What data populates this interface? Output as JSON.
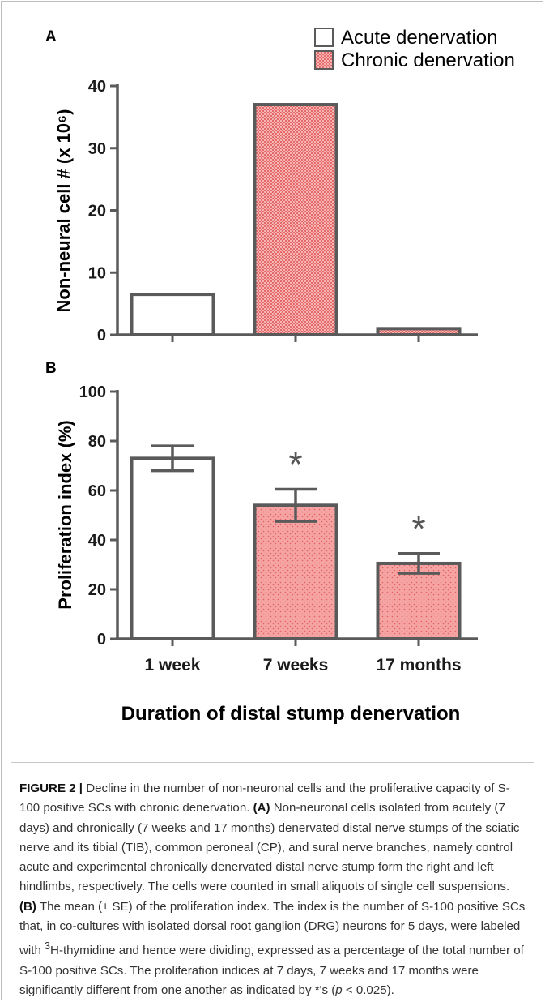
{
  "chart_data": [
    {
      "panel": "A",
      "type": "bar",
      "categories": [
        "1 week",
        "7 weeks",
        "17 months"
      ],
      "values": [
        6.5,
        37,
        1
      ],
      "ylabel": "Non-neural cell # (x 10⁶)",
      "ylim": [
        0,
        40
      ],
      "yticks": [
        "0",
        "10",
        "20",
        "30",
        "40"
      ],
      "bar_styles": [
        "acute",
        "chronic",
        "chronic"
      ],
      "legend": {
        "position": "top-right",
        "entries": [
          {
            "label": "Acute denervation",
            "style": "acute"
          },
          {
            "label": "Chronic denervation",
            "style": "chronic"
          }
        ]
      }
    },
    {
      "panel": "B",
      "type": "bar",
      "categories": [
        "1 week",
        "7 weeks",
        "17 months"
      ],
      "values": [
        73,
        54,
        30.5
      ],
      "errors": [
        5,
        6.5,
        4
      ],
      "significance": [
        "",
        "*",
        "*"
      ],
      "ylabel": "Proliferation index (%)",
      "ylim": [
        0,
        100
      ],
      "yticks": [
        "0",
        "20",
        "40",
        "60",
        "80",
        "100"
      ],
      "bar_styles": [
        "acute",
        "chronic",
        "chronic"
      ],
      "xlabel": "Duration of distal stump denervation"
    }
  ],
  "colors": {
    "outline": "#5a5a5a",
    "chronic_fill": "#f4a0a0",
    "chronic_dot": "#e05656",
    "acute_fill": "#ffffff"
  },
  "caption": {
    "figure_label": "FIGURE 2 |",
    "text_intro": " Decline in the number of non-neuronal cells and the proliferative capacity of S-100 positive SCs with chronic denervation. ",
    "a_label": "(A)",
    "a_text": " Non-neuronal cells isolated from acutely (7 days) and chronically (7 weeks and 17 months) denervated distal nerve stumps of the sciatic nerve and its tibial (TIB), common peroneal (CP), and sural nerve branches, namely control acute and experimental chronically denervated distal nerve stump form the right and left hindlimbs, respectively. The cells were counted in small aliquots of single cell suspensions. ",
    "b_label": "(B)",
    "b_text_1": " The mean (± SE) of the proliferation index. The index is the number of S-100 positive SCs that, in co-cultures with isolated dorsal root ganglion (DRG) neurons for 5 days, were labeled with ",
    "b_sup": "3",
    "b_text_2": "H-thymidine and hence were dividing, expressed as a percentage of the total number of S-100 positive SCs. The proliferation indices at 7 days, 7 weeks and 17 months were significantly different from one another as indicated by *'s (",
    "b_p": "p",
    "b_text_3": " < 0.025)."
  }
}
